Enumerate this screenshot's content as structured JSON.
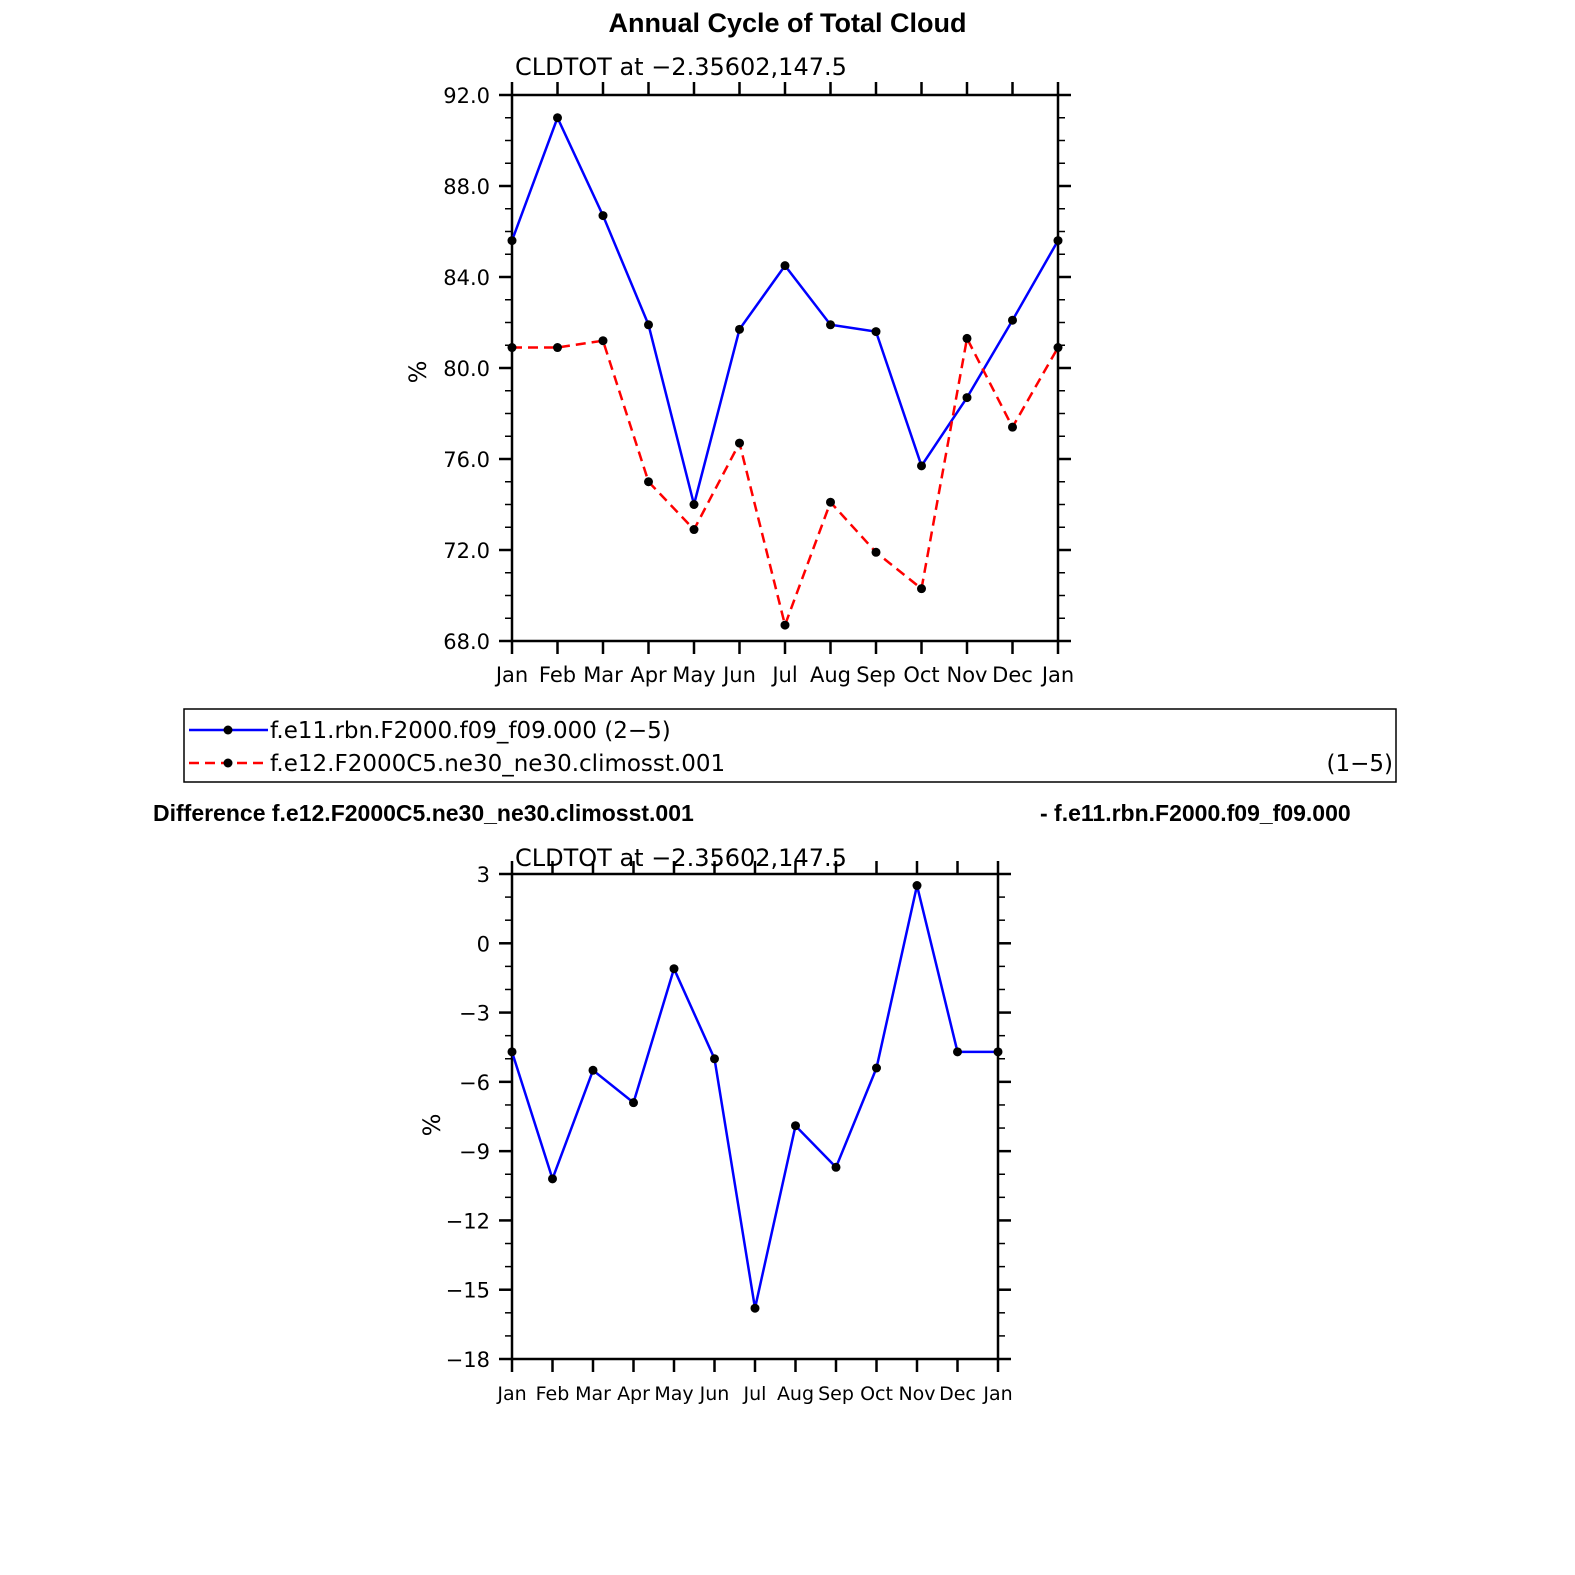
{
  "chart_data": [
    {
      "type": "line",
      "title": "Annual Cycle of Total Cloud",
      "subtitle": "CLDTOT at −2.35602,147.5",
      "ylabel": "%",
      "ylim": [
        68,
        92
      ],
      "yticks": [
        68,
        72,
        76,
        80,
        84,
        88,
        92
      ],
      "ytick_labels": [
        "68.0",
        "72.0",
        "76.0",
        "80.0",
        "84.0",
        "88.0",
        "92.0"
      ],
      "categories": [
        "Jan",
        "Feb",
        "Mar",
        "Apr",
        "May",
        "Jun",
        "Jul",
        "Aug",
        "Sep",
        "Oct",
        "Nov",
        "Dec",
        "Jan"
      ],
      "series": [
        {
          "name": "f.e11.rbn.F2000.f09_f09.000 (2−5)",
          "color": "#0000ff",
          "dash": "solid",
          "values": [
            85.6,
            91.0,
            86.7,
            81.9,
            74.0,
            81.7,
            84.5,
            81.9,
            81.6,
            75.7,
            78.7,
            82.1,
            85.6
          ]
        },
        {
          "name": "f.e12.F2000C5.ne30_ne30.climosst.001",
          "name_suffix": "(1−5)",
          "color": "#ff0000",
          "dash": "dashed",
          "values": [
            80.9,
            80.9,
            81.2,
            75.0,
            72.9,
            76.7,
            68.7,
            74.1,
            71.9,
            70.3,
            81.3,
            77.4,
            80.9
          ]
        }
      ],
      "grid": false,
      "legend": "below"
    },
    {
      "type": "line",
      "title_left": "Difference f.e12.F2000C5.ne30_ne30.climosst.001",
      "title_right": "- f.e11.rbn.F2000.f09_f09.000",
      "subtitle": "CLDTOT at −2.35602,147.5",
      "ylabel": "%",
      "ylim": [
        -18,
        3
      ],
      "yticks": [
        -18,
        -15,
        -12,
        -9,
        -6,
        -3,
        0,
        3
      ],
      "ytick_labels": [
        "−18",
        "−15",
        "−12",
        "−9",
        "−6",
        "−3",
        "0",
        "3"
      ],
      "categories": [
        "Jan",
        "Feb",
        "Mar",
        "Apr",
        "May",
        "Jun",
        "Jul",
        "Aug",
        "Sep",
        "Oct",
        "Nov",
        "Dec",
        "Jan"
      ],
      "series": [
        {
          "color": "#0000ff",
          "dash": "solid",
          "values": [
            -4.7,
            -10.2,
            -5.5,
            -6.9,
            -1.1,
            -5.0,
            -15.8,
            -7.9,
            -9.7,
            -5.4,
            2.5,
            -4.7,
            -4.7
          ]
        }
      ],
      "grid": false
    }
  ]
}
